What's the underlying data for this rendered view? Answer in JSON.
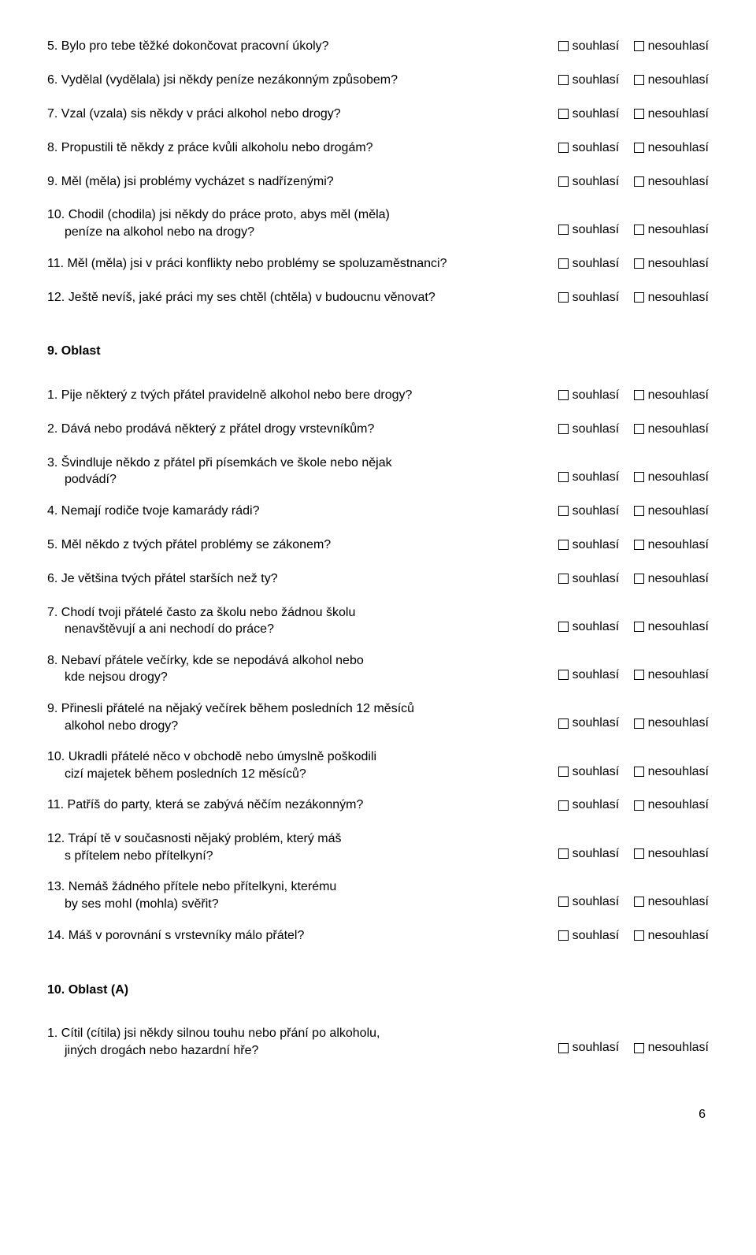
{
  "answer_yes": "souhlasí",
  "answer_no": "nesouhlasí",
  "page_number": "6",
  "section_a": {
    "items": [
      {
        "num": "5.",
        "text": "Bylo pro tebe těžké dokončovat pracovní úkoly?"
      },
      {
        "num": "6.",
        "text": "Vydělal (vydělala) jsi někdy peníze nezákonným způsobem?"
      },
      {
        "num": "7.",
        "text": "Vzal (vzala) sis někdy v práci alkohol nebo drogy?"
      },
      {
        "num": "8.",
        "text": "Propustili tě někdy z práce kvůli alkoholu nebo drogám?"
      },
      {
        "num": "9.",
        "text": "Měl (měla) jsi problémy vycházet s nadřízenými?"
      },
      {
        "num": "10.",
        "text": "Chodil (chodila) jsi někdy do práce proto, abys měl (měla)",
        "text2": "peníze na alkohol nebo na drogy?"
      },
      {
        "num": "11.",
        "text": "Měl (měla) jsi v práci konflikty nebo problémy se spoluzaměstnanci?"
      },
      {
        "num": "12.",
        "text": "Ještě nevíš, jaké práci my ses chtěl (chtěla) v budoucnu věnovat?"
      }
    ]
  },
  "section_9": {
    "heading": "9. Oblast",
    "items": [
      {
        "num": "1.",
        "text": "Pije některý z tvých přátel pravidelně alkohol nebo bere drogy?"
      },
      {
        "num": "2.",
        "text": "Dává nebo prodává některý z přátel  drogy vrstevníkům?"
      },
      {
        "num": "3.",
        "text": "Švindluje někdo z přátel při písemkách ve škole nebo nějak",
        "text2": "podvádí?"
      },
      {
        "num": "4.",
        "text": "Nemají rodiče tvoje kamarády rádi?"
      },
      {
        "num": "5.",
        "text": "Měl někdo z tvých přátel problémy se zákonem?"
      },
      {
        "num": "6.",
        "text": "Je většina tvých přátel starších než ty?"
      },
      {
        "num": "7.",
        "text": "Chodí tvoji přátelé často za školu nebo žádnou školu",
        "text2": "nenavštěvují a ani nechodí do práce?"
      },
      {
        "num": "8.",
        "text": "Nebaví přátele večírky, kde se nepodává alkohol nebo",
        "text2": "kde nejsou drogy?"
      },
      {
        "num": "9.",
        "text": "Přinesli přátelé na nějaký večírek během posledních 12 měsíců",
        "text2": "alkohol nebo drogy?"
      },
      {
        "num": "10.",
        "text": "Ukradli přátelé něco v obchodě nebo úmyslně poškodili",
        "text2": "cizí majetek během posledních 12 měsíců?"
      },
      {
        "num": "11.",
        "text": "Patříš do party, která se zabývá něčím nezákonným?"
      },
      {
        "num": "12.",
        "text": "Trápí tě v současnosti nějaký problém, který máš",
        "text2": "s přítelem nebo přítelkyní?"
      },
      {
        "num": "13.",
        "text": "Nemáš žádného přítele nebo přítelkyni, kterému",
        "text2": "by ses mohl (mohla) svěřit?"
      },
      {
        "num": "14.",
        "text": "Máš v porovnání s vrstevníky málo přátel?"
      }
    ]
  },
  "section_10": {
    "heading": "10. Oblast (A)",
    "items": [
      {
        "num": "1.",
        "text": "Cítil (cítila) jsi někdy silnou touhu nebo přání po alkoholu,",
        "text2": "jiných drogách nebo hazardní hře?"
      }
    ]
  }
}
